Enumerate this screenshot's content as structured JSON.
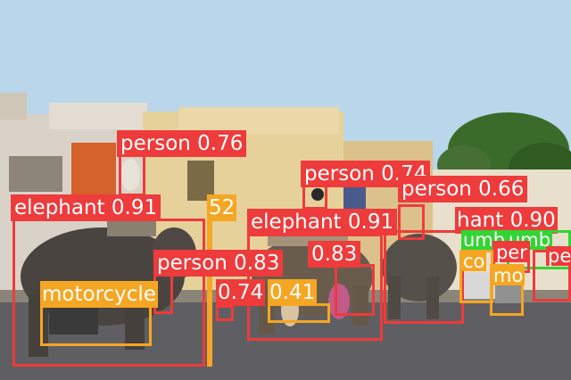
{
  "colors": {
    "person": "#ee3b3b",
    "elephant": "#ee3b3b",
    "motorcycle": "#f5a623",
    "umbrella": "#33d433",
    "sky": "#b9d6ea",
    "road": "#5f5f63"
  },
  "detections": [
    {
      "label": "person 0.76",
      "cls": "person"
    },
    {
      "label": "person 0.74",
      "cls": "person"
    },
    {
      "label": "person 0.66",
      "cls": "person"
    },
    {
      "label": "elephant 0.91",
      "cls": "elephant"
    },
    {
      "label": "52",
      "cls": "motorcycle"
    },
    {
      "label": "elephant 0.91",
      "cls": "elephant"
    },
    {
      "label": "hant 0.90",
      "cls": "elephant"
    },
    {
      "label": "person 0.83",
      "cls": "person"
    },
    {
      "label": "0.83",
      "cls": "person"
    },
    {
      "label": "motorcycle",
      "cls": "motorcycle"
    },
    {
      "label": "0.74",
      "cls": "person"
    },
    {
      "label": "0.41",
      "cls": "motorcycle"
    },
    {
      "label": "umb",
      "cls": "umbrella"
    },
    {
      "label": "umb",
      "cls": "umbrella"
    },
    {
      "label": "per",
      "cls": "person"
    },
    {
      "label": "mo",
      "cls": "motorcycle"
    },
    {
      "label": "pe",
      "cls": "person"
    },
    {
      "label": "co",
      "cls": "motorcycle"
    }
  ]
}
